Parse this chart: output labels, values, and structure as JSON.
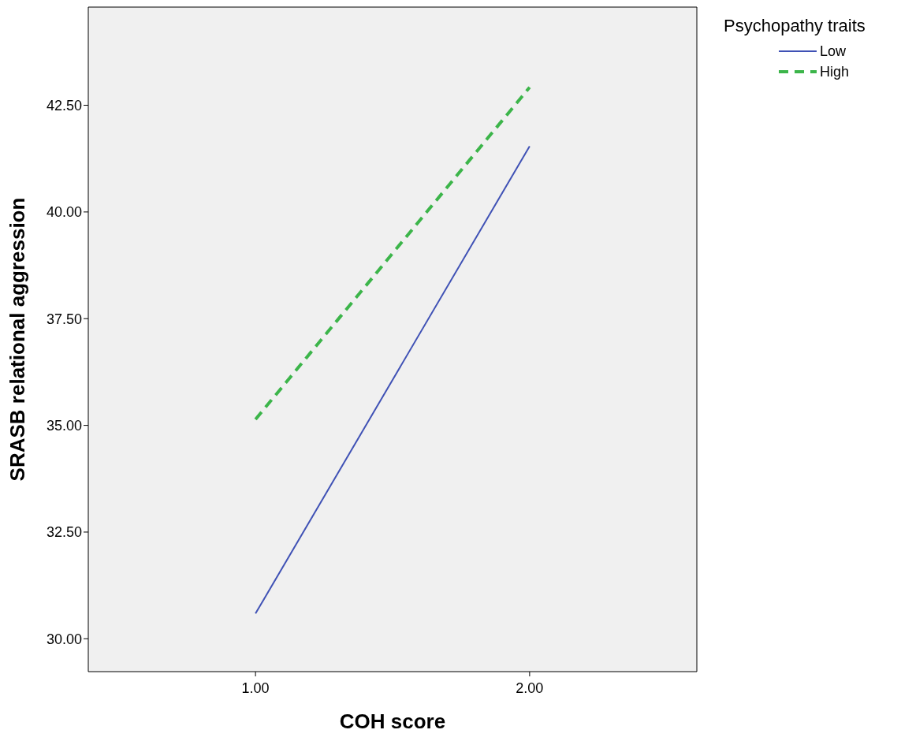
{
  "chart_data": {
    "type": "line",
    "xlabel": "COH score",
    "ylabel": "SRASB relational aggression",
    "legend_title": "Psychopathy traits",
    "x": [
      1,
      2
    ],
    "series": [
      {
        "name": "Low",
        "color": "#3f51b5",
        "values": [
          30.59,
          41.54
        ],
        "line_style": "solid"
      },
      {
        "name": "High",
        "color": "#3cb54a",
        "values": [
          35.14,
          42.92
        ],
        "line_style": "dashed"
      }
    ],
    "xlim": [
      0.39,
      2.61
    ],
    "xticks": [
      {
        "value": 1,
        "label": "1.00"
      },
      {
        "value": 2,
        "label": "2.00"
      }
    ],
    "ylim": [
      29.23,
      44.8
    ],
    "yticks": [
      {
        "value": 30,
        "label": "30.00"
      },
      {
        "value": 32.5,
        "label": "32.50"
      },
      {
        "value": 35,
        "label": "35.00"
      },
      {
        "value": 37.5,
        "label": "37.50"
      },
      {
        "value": 40,
        "label": "40.00"
      },
      {
        "value": 42.5,
        "label": "42.50"
      }
    ],
    "grid": false,
    "legend": "top right",
    "marker": "none"
  }
}
